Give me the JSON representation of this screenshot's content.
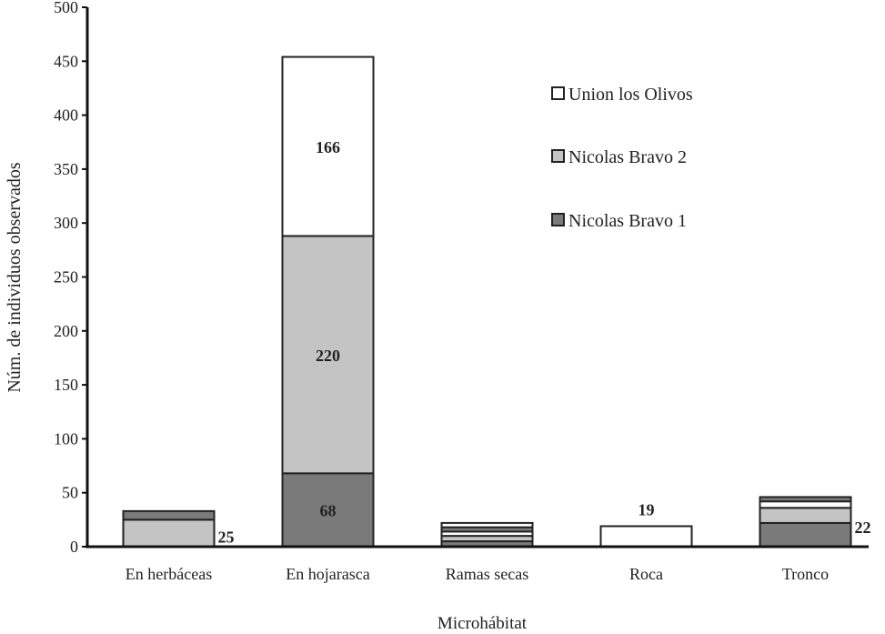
{
  "chart_data": {
    "type": "bar",
    "stacked": true,
    "categories": [
      "En herbáceas",
      "En hojarasca",
      "Ramas secas",
      "Roca",
      "Tronco"
    ],
    "series": [
      {
        "name": "Nicolas Bravo 1",
        "values": [
          0,
          68,
          5,
          0,
          22
        ],
        "color": "#7a7a7a"
      },
      {
        "name": "Nicolas Bravo 2",
        "values": [
          25,
          220,
          5,
          0,
          14
        ],
        "color": "#c4c4c4"
      },
      {
        "name": "Union los Olivos",
        "values": [
          0,
          166,
          4,
          19,
          6
        ],
        "color": "#ffffff"
      }
    ],
    "extra_top_segments": [
      {
        "category": "En herbáceas",
        "value": 8,
        "color": "#7a7a7a"
      },
      {
        "category": "Ramas secas",
        "value": 4,
        "color": "#7a7a7a"
      },
      {
        "category": "Ramas secas",
        "value": 4,
        "color": "#ffffff"
      },
      {
        "category": "Tronco",
        "value": 4,
        "color": "#7a7a7a"
      }
    ],
    "data_labels": [
      {
        "category": "En herbáceas",
        "text": "25",
        "position": "right",
        "anchor_value": 2
      },
      {
        "category": "En hojarasca",
        "text": "68",
        "position": "inside",
        "anchor_value": 34
      },
      {
        "category": "En hojarasca",
        "text": "220",
        "position": "inside",
        "anchor_value": 178
      },
      {
        "category": "En hojarasca",
        "text": "166",
        "position": "inside",
        "anchor_value": 371
      },
      {
        "category": "Roca",
        "text": "19",
        "position": "above",
        "anchor_value": 19
      },
      {
        "category": "Tronco",
        "text": "22",
        "position": "right",
        "anchor_value": 11
      }
    ],
    "ylabel": "Núm. de individuos observados",
    "xlabel": "Microhábitat",
    "ylim": [
      0,
      500
    ],
    "yticks": [
      0,
      50,
      100,
      150,
      200,
      250,
      300,
      350,
      400,
      450,
      500
    ],
    "grid": false,
    "legend_position": "top-right",
    "legend_order": [
      "Union los Olivos",
      "Nicolas Bravo 2",
      "Nicolas Bravo 1"
    ]
  }
}
